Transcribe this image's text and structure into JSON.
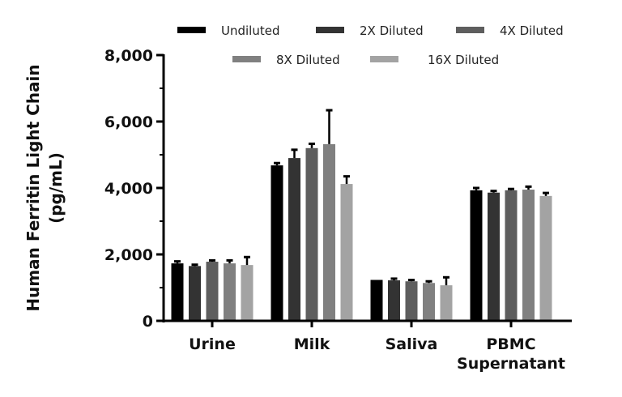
{
  "chart_data": {
    "type": "bar",
    "title": "",
    "xlabel": "",
    "ylabel": "Human Ferritin Light Chain (pg/mL)",
    "ylabel_lines": [
      "Human Ferritin Light Chain",
      "(pg/mL)"
    ],
    "ylim": [
      0,
      8000
    ],
    "yticks": [
      0,
      2000,
      4000,
      6000,
      8000
    ],
    "ytick_labels": [
      "0",
      "2,000",
      "4,000",
      "6,000",
      "8,000"
    ],
    "minor_ticks": [
      1000,
      3000,
      5000,
      7000
    ],
    "grid": false,
    "legend_position": "top",
    "categories": [
      "Urine",
      "Milk",
      "Saliva",
      "PBMC Supernatant"
    ],
    "category_lines": [
      [
        "Urine"
      ],
      [
        "Milk"
      ],
      [
        "Saliva"
      ],
      [
        "PBMC",
        "Supernatant"
      ]
    ],
    "series": [
      {
        "name": "Undiluted",
        "color": "#000000",
        "values": [
          1730,
          4680,
          1220,
          3930
        ],
        "errors": [
          60,
          70,
          0,
          70
        ]
      },
      {
        "name": "2X Diluted",
        "color": "#333333",
        "values": [
          1650,
          4900,
          1220,
          3860
        ],
        "errors": [
          40,
          250,
          50,
          50
        ]
      },
      {
        "name": "4X Diluted",
        "color": "#5e5e5e",
        "values": [
          1780,
          5200,
          1190,
          3930
        ],
        "errors": [
          40,
          130,
          40,
          40
        ]
      },
      {
        "name": "8X Diluted",
        "color": "#808080",
        "values": [
          1730,
          5320,
          1140,
          3950
        ],
        "errors": [
          90,
          1020,
          50,
          90
        ]
      },
      {
        "name": "16X Diluted",
        "color": "#a3a3a3",
        "values": [
          1680,
          4120,
          1070,
          3760
        ],
        "errors": [
          240,
          230,
          240,
          90
        ]
      }
    ]
  }
}
